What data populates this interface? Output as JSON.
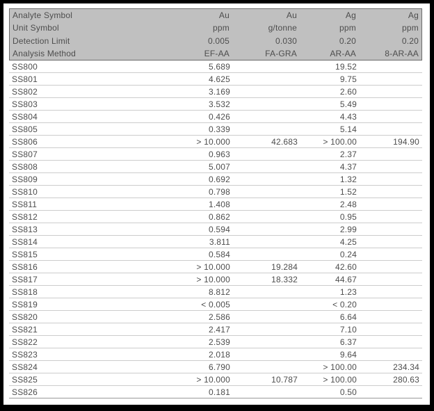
{
  "colors": {
    "frame": "#000000",
    "paper": "#ffffff",
    "header_bg": "#c0c0c0",
    "header_border": "#6b6b6b",
    "text": "#4d4d4d",
    "row_line": "#cccccc",
    "bottom_line": "#999999"
  },
  "table": {
    "header_rows": [
      {
        "label": "Analyte Symbol",
        "values": [
          "Au",
          "Au",
          "Ag",
          "Ag"
        ]
      },
      {
        "label": "Unit Symbol",
        "values": [
          "ppm",
          "g/tonne",
          "ppm",
          "ppm"
        ]
      },
      {
        "label": "Detection Limit",
        "values": [
          "0.005",
          "0.030",
          "0.20",
          "0.20"
        ]
      },
      {
        "label": "Analysis Method",
        "values": [
          "EF-AA",
          "FA-GRA",
          "AR-AA",
          "8-AR-AA"
        ]
      }
    ],
    "rows": [
      {
        "sample": "SS800",
        "values": [
          "5.689",
          "",
          "19.52",
          ""
        ]
      },
      {
        "sample": "SS801",
        "values": [
          "4.625",
          "",
          "9.75",
          ""
        ]
      },
      {
        "sample": "SS802",
        "values": [
          "3.169",
          "",
          "2.60",
          ""
        ]
      },
      {
        "sample": "SS803",
        "values": [
          "3.532",
          "",
          "5.49",
          ""
        ]
      },
      {
        "sample": "SS804",
        "values": [
          "0.426",
          "",
          "4.43",
          ""
        ]
      },
      {
        "sample": "SS805",
        "values": [
          "0.339",
          "",
          "5.14",
          ""
        ]
      },
      {
        "sample": "SS806",
        "values": [
          "> 10.000",
          "42.683",
          "> 100.00",
          "194.90"
        ]
      },
      {
        "sample": "SS807",
        "values": [
          "0.963",
          "",
          "2.37",
          ""
        ]
      },
      {
        "sample": "SS808",
        "values": [
          "5.007",
          "",
          "4.37",
          ""
        ]
      },
      {
        "sample": "SS809",
        "values": [
          "0.692",
          "",
          "1.32",
          ""
        ]
      },
      {
        "sample": "SS810",
        "values": [
          "0.798",
          "",
          "1.52",
          ""
        ]
      },
      {
        "sample": "SS811",
        "values": [
          "1.408",
          "",
          "2.48",
          ""
        ]
      },
      {
        "sample": "SS812",
        "values": [
          "0.862",
          "",
          "0.95",
          ""
        ]
      },
      {
        "sample": "SS813",
        "values": [
          "0.594",
          "",
          "2.99",
          ""
        ]
      },
      {
        "sample": "SS814",
        "values": [
          "3.811",
          "",
          "4.25",
          ""
        ]
      },
      {
        "sample": "SS815",
        "values": [
          "0.584",
          "",
          "0.24",
          ""
        ]
      },
      {
        "sample": "SS816",
        "values": [
          "> 10.000",
          "19.284",
          "42.60",
          ""
        ]
      },
      {
        "sample": "SS817",
        "values": [
          "> 10.000",
          "18.332",
          "44.67",
          ""
        ]
      },
      {
        "sample": "SS818",
        "values": [
          "8.812",
          "",
          "1.23",
          ""
        ]
      },
      {
        "sample": "SS819",
        "values": [
          "< 0.005",
          "",
          "< 0.20",
          ""
        ]
      },
      {
        "sample": "SS820",
        "values": [
          "2.586",
          "",
          "6.64",
          ""
        ]
      },
      {
        "sample": "SS821",
        "values": [
          "2.417",
          "",
          "7.10",
          ""
        ]
      },
      {
        "sample": "SS822",
        "values": [
          "2.539",
          "",
          "6.37",
          ""
        ]
      },
      {
        "sample": "SS823",
        "values": [
          "2.018",
          "",
          "9.64",
          ""
        ]
      },
      {
        "sample": "SS824",
        "values": [
          "6.790",
          "",
          "> 100.00",
          "234.34"
        ]
      },
      {
        "sample": "SS825",
        "values": [
          "> 10.000",
          "10.787",
          "> 100.00",
          "280.63"
        ]
      },
      {
        "sample": "SS826",
        "values": [
          "0.181",
          "",
          "0.50",
          ""
        ]
      }
    ]
  }
}
